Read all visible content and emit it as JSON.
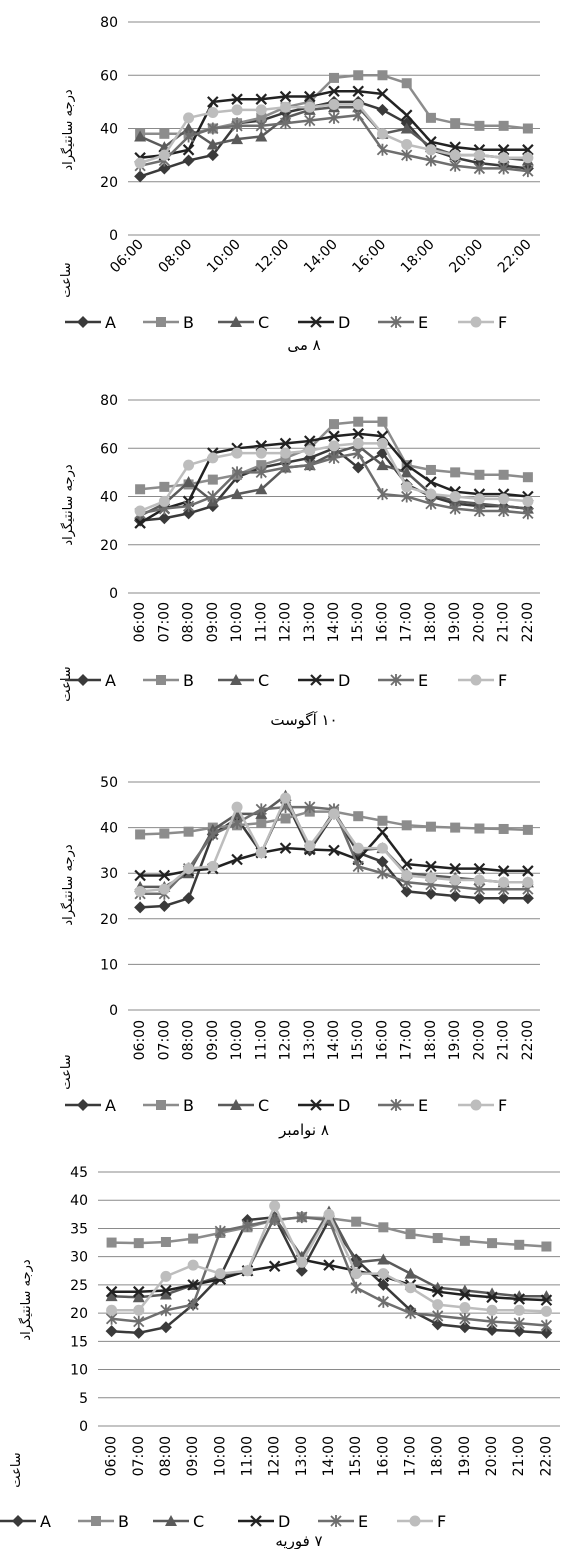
{
  "colors": {
    "A": "#3a3a3a",
    "B": "#8c8c8c",
    "C": "#5a5a5a",
    "D": "#222222",
    "E": "#6e6e6e",
    "F": "#bdbdbd",
    "grid": "#8a8a8a"
  },
  "markers": {
    "A": "diamond",
    "B": "square",
    "C": "triangle",
    "D": "x",
    "E": "star",
    "F": "circle"
  },
  "chart_data": [
    {
      "type": "line",
      "title": "۸ می",
      "xlabel": "ساعت",
      "ylabel": "درجه سانتیگراد",
      "ylim": [
        0,
        80
      ],
      "yticks": [
        0,
        20,
        40,
        60,
        80
      ],
      "x": [
        "06:00",
        "07:00",
        "08:00",
        "09:00",
        "10:00",
        "11:00",
        "12:00",
        "13:00",
        "14:00",
        "15:00",
        "16:00",
        "17:00",
        "18:00",
        "19:00",
        "20:00",
        "21:00",
        "22:00"
      ],
      "xtick_labels": [
        "06:00",
        "",
        "08:00",
        "",
        "10:00",
        "",
        "12:00",
        "",
        "14:00",
        "",
        "16:00",
        "",
        "18:00",
        "",
        "20:00",
        "",
        "22:00"
      ],
      "legend": "bottom",
      "series": [
        {
          "name": "A",
          "values": [
            22,
            25,
            28,
            30,
            42,
            43,
            46,
            48,
            50,
            50,
            47,
            42,
            32,
            29,
            27,
            26,
            25
          ]
        },
        {
          "name": "B",
          "values": [
            38,
            38,
            38,
            40,
            42,
            44,
            48,
            50,
            59,
            60,
            60,
            57,
            44,
            42,
            41,
            41,
            40
          ]
        },
        {
          "name": "C",
          "values": [
            37,
            33,
            40,
            34,
            36,
            37,
            44,
            47,
            48,
            48,
            38,
            40,
            33,
            30,
            30,
            29,
            28
          ]
        },
        {
          "name": "D",
          "values": [
            29,
            30,
            32,
            50,
            51,
            51,
            52,
            52,
            54,
            54,
            53,
            45,
            35,
            33,
            32,
            32,
            32
          ]
        },
        {
          "name": "E",
          "values": [
            26,
            28,
            37,
            40,
            41,
            41,
            42,
            43,
            44,
            45,
            32,
            30,
            28,
            26,
            25,
            25,
            24
          ]
        },
        {
          "name": "F",
          "values": [
            27,
            30,
            44,
            46,
            47,
            47,
            48,
            48,
            49,
            49,
            38,
            34,
            32,
            30,
            30,
            29,
            29
          ]
        }
      ]
    },
    {
      "type": "line",
      "title": "۱۰ آگوست",
      "xlabel": "ساعت",
      "ylabel": "درجه سانتیگراد",
      "ylim": [
        0,
        80
      ],
      "yticks": [
        0,
        20,
        40,
        60,
        80
      ],
      "x": [
        "06:00",
        "07:00",
        "08:00",
        "09:00",
        "10:00",
        "11:00",
        "12:00",
        "13:00",
        "14:00",
        "15:00",
        "16:00",
        "17:00",
        "18:00",
        "19:00",
        "20:00",
        "21:00",
        "22:00"
      ],
      "xtick_labels": [
        "06:00",
        "07:00",
        "08:00",
        "09:00",
        "10:00",
        "11:00",
        "12:00",
        "13:00",
        "14:00",
        "15:00",
        "16:00",
        "17:00",
        "18:00",
        "19:00",
        "20:00",
        "21:00",
        "22:00"
      ],
      "legend": "bottom",
      "series": [
        {
          "name": "A",
          "values": [
            30,
            31,
            33,
            36,
            48,
            52,
            54,
            56,
            60,
            52,
            58,
            45,
            40,
            37,
            36,
            36,
            35
          ]
        },
        {
          "name": "B",
          "values": [
            43,
            44,
            45,
            47,
            49,
            53,
            56,
            60,
            70,
            71,
            71,
            53,
            51,
            50,
            49,
            49,
            48
          ]
        },
        {
          "name": "C",
          "values": [
            32,
            37,
            46,
            38,
            41,
            43,
            52,
            53,
            58,
            61,
            53,
            50,
            41,
            38,
            37,
            36,
            35
          ]
        },
        {
          "name": "D",
          "values": [
            29,
            35,
            38,
            58,
            60,
            61,
            62,
            63,
            65,
            66,
            65,
            53,
            46,
            42,
            41,
            41,
            40
          ]
        },
        {
          "name": "E",
          "values": [
            33,
            35,
            36,
            40,
            50,
            50,
            52,
            53,
            56,
            58,
            41,
            40,
            37,
            35,
            34,
            34,
            33
          ]
        },
        {
          "name": "F",
          "values": [
            34,
            38,
            53,
            56,
            58,
            58,
            58,
            59,
            61,
            62,
            62,
            44,
            41,
            40,
            39,
            39,
            38
          ]
        }
      ]
    },
    {
      "type": "line",
      "title": "۸ نوامبر",
      "xlabel": "ساعت",
      "ylabel": "درجه سانتیگراد",
      "ylim": [
        0,
        50
      ],
      "yticks": [
        0,
        10,
        20,
        30,
        40,
        50
      ],
      "x": [
        "06:00",
        "07:00",
        "08:00",
        "09:00",
        "10:00",
        "11:00",
        "12:00",
        "13:00",
        "14:00",
        "15:00",
        "16:00",
        "17:00",
        "18:00",
        "19:00",
        "20:00",
        "21:00",
        "22:00"
      ],
      "xtick_labels": [
        "06:00",
        "07:00",
        "08:00",
        "09:00",
        "10:00",
        "11:00",
        "12:00",
        "13:00",
        "14:00",
        "15:00",
        "16:00",
        "17:00",
        "18:00",
        "19:00",
        "20:00",
        "21:00",
        "22:00"
      ],
      "legend": "bottom",
      "series": [
        {
          "name": "A",
          "values": [
            22.5,
            22.8,
            24.5,
            38.5,
            42,
            34.5,
            46,
            35,
            43,
            34.5,
            32.5,
            26,
            25.5,
            25,
            24.5,
            24.5,
            24.5
          ]
        },
        {
          "name": "B",
          "values": [
            38.5,
            38.7,
            39.1,
            40,
            40.5,
            41,
            42,
            43.5,
            43.5,
            42.5,
            41.5,
            40.5,
            40.2,
            40,
            39.8,
            39.7,
            39.5
          ]
        },
        {
          "name": "C",
          "values": [
            27,
            27,
            30,
            39.5,
            43,
            43,
            47,
            35.5,
            43.5,
            35,
            35.5,
            30,
            29.5,
            29,
            28.5,
            28,
            28
          ]
        },
        {
          "name": "D",
          "values": [
            29.5,
            29.5,
            30.5,
            31,
            33,
            34.5,
            35.5,
            35.2,
            35,
            33,
            39,
            32,
            31.5,
            31,
            31,
            30.5,
            30.5
          ]
        },
        {
          "name": "E",
          "values": [
            25.5,
            25.5,
            31,
            38.5,
            41,
            44,
            44.5,
            44.5,
            44,
            31.5,
            30,
            28,
            27.5,
            27,
            26.5,
            26.5,
            26.5
          ]
        },
        {
          "name": "F",
          "values": [
            26,
            26.5,
            31,
            31.5,
            44.5,
            34.5,
            46.5,
            36,
            43,
            35.5,
            35.5,
            29.5,
            29,
            28.5,
            28.5,
            28,
            28
          ]
        }
      ]
    },
    {
      "type": "line",
      "title": "۷ فوریه",
      "xlabel": "ساعت",
      "ylabel": "درجه سانتیگراد",
      "ylim": [
        0,
        45
      ],
      "yticks": [
        0,
        5,
        10,
        15,
        20,
        25,
        30,
        35,
        40,
        45
      ],
      "x": [
        "06:00",
        "07:00",
        "08:00",
        "09:00",
        "10:00",
        "11:00",
        "12:00",
        "13:00",
        "14:00",
        "15:00",
        "16:00",
        "17:00",
        "18:00",
        "19:00",
        "20:00",
        "21:00",
        "22:00"
      ],
      "xtick_labels": [
        "06:00",
        "07:00",
        "08:00",
        "09:00",
        "10:00",
        "11:00",
        "12:00",
        "13:00",
        "14:00",
        "15:00",
        "16:00",
        "17:00",
        "18:00",
        "19:00",
        "20:00",
        "21:00",
        "22:00"
      ],
      "legend": "bottom",
      "series": [
        {
          "name": "A",
          "values": [
            16.8,
            16.5,
            17.5,
            21.5,
            26.5,
            36.5,
            37,
            27.5,
            36.5,
            29.5,
            25,
            20.5,
            18,
            17.5,
            17,
            16.8,
            16.5
          ]
        },
        {
          "name": "B",
          "values": [
            32.5,
            32.4,
            32.6,
            33.2,
            34.2,
            35.2,
            36.5,
            37,
            36.8,
            36.2,
            35.2,
            34,
            33.3,
            32.8,
            32.4,
            32.1,
            31.8
          ]
        },
        {
          "name": "C",
          "values": [
            23,
            22.8,
            23.3,
            25,
            26.5,
            27.5,
            37,
            30,
            38,
            29,
            29.5,
            27,
            24.5,
            24,
            23.5,
            23,
            23
          ]
        },
        {
          "name": "D",
          "values": [
            23.8,
            23.8,
            24,
            25,
            26,
            27.5,
            28.3,
            29.5,
            28.5,
            27.5,
            26.5,
            25,
            23.8,
            23.2,
            22.8,
            22.5,
            22.3
          ]
        },
        {
          "name": "E",
          "values": [
            19,
            18.5,
            20.5,
            21.5,
            34.5,
            35.5,
            36.5,
            37,
            36.5,
            24.5,
            22,
            20,
            19.5,
            19,
            18.5,
            18.2,
            17.8
          ]
        },
        {
          "name": "F",
          "values": [
            20.5,
            20.5,
            26.5,
            28.5,
            27,
            27.5,
            39,
            29,
            37.5,
            27,
            27,
            24.5,
            21.5,
            21,
            20.5,
            20.5,
            20.3
          ]
        }
      ]
    }
  ]
}
